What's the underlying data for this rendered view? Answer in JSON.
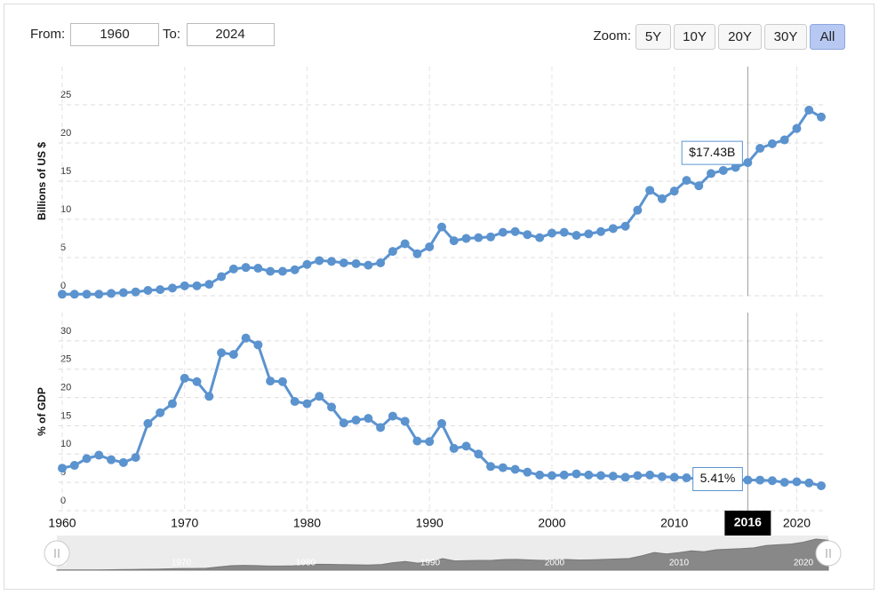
{
  "controls": {
    "from_label": "From:",
    "from": "1960",
    "to_label": "To:",
    "to": "2024",
    "zoom_label": "Zoom:",
    "zoom": [
      "5Y",
      "10Y",
      "20Y",
      "30Y",
      "All"
    ],
    "zoom_active": "All"
  },
  "chart_data": [
    {
      "type": "line",
      "y_label": "Billions of US $",
      "color": "#5b93cf",
      "x": [
        1960,
        1961,
        1962,
        1963,
        1964,
        1965,
        1966,
        1967,
        1968,
        1969,
        1970,
        1971,
        1972,
        1973,
        1974,
        1975,
        1976,
        1977,
        1978,
        1979,
        1980,
        1981,
        1982,
        1983,
        1984,
        1985,
        1986,
        1987,
        1988,
        1989,
        1990,
        1991,
        1992,
        1993,
        1994,
        1995,
        1996,
        1997,
        1998,
        1999,
        2000,
        2001,
        2002,
        2003,
        2004,
        2005,
        2006,
        2007,
        2008,
        2009,
        2010,
        2011,
        2012,
        2013,
        2014,
        2015,
        2016,
        2017,
        2018,
        2019,
        2020,
        2021,
        2022
      ],
      "values": [
        0.2,
        0.2,
        0.2,
        0.2,
        0.3,
        0.4,
        0.5,
        0.7,
        0.8,
        1.0,
        1.3,
        1.3,
        1.5,
        2.5,
        3.5,
        3.7,
        3.6,
        3.2,
        3.2,
        3.4,
        4.1,
        4.6,
        4.5,
        4.3,
        4.2,
        4.0,
        4.3,
        5.8,
        6.8,
        5.5,
        6.4,
        9.0,
        7.2,
        7.5,
        7.6,
        7.7,
        8.3,
        8.4,
        8.0,
        7.6,
        8.2,
        8.3,
        7.9,
        8.1,
        8.4,
        8.8,
        9.1,
        11.2,
        13.8,
        12.7,
        13.7,
        15.1,
        14.4,
        16.0,
        16.4,
        16.8,
        17.43,
        19.3,
        19.9,
        20.4,
        21.9,
        24.3,
        23.4
      ],
      "xlim": [
        1960,
        2022
      ],
      "xticks": [
        1960,
        1970,
        1980,
        1990,
        2000,
        2010,
        2020
      ],
      "ylim": [
        0,
        30
      ],
      "yticks": [
        0,
        5,
        10,
        15,
        20,
        25
      ],
      "grid": true,
      "tooltip": {
        "x": 2016,
        "label": "$17.43B"
      }
    },
    {
      "type": "line",
      "y_label": "% of GDP",
      "color": "#5b93cf",
      "x": [
        1960,
        1961,
        1962,
        1963,
        1964,
        1965,
        1966,
        1967,
        1968,
        1969,
        1970,
        1971,
        1972,
        1973,
        1974,
        1975,
        1976,
        1977,
        1978,
        1979,
        1980,
        1981,
        1982,
        1983,
        1984,
        1985,
        1986,
        1987,
        1988,
        1989,
        1990,
        1991,
        1992,
        1993,
        1994,
        1995,
        1996,
        1997,
        1998,
        1999,
        2000,
        2001,
        2002,
        2003,
        2004,
        2005,
        2006,
        2007,
        2008,
        2009,
        2010,
        2011,
        2012,
        2013,
        2014,
        2015,
        2016,
        2017,
        2018,
        2019,
        2020,
        2021,
        2022
      ],
      "values": [
        7.5,
        8.0,
        9.2,
        9.8,
        9.0,
        8.5,
        9.4,
        15.4,
        17.3,
        18.9,
        23.4,
        22.8,
        20.2,
        27.9,
        27.6,
        30.5,
        29.3,
        22.9,
        22.8,
        19.3,
        18.9,
        20.2,
        18.3,
        15.5,
        16.0,
        16.3,
        14.7,
        16.7,
        15.8,
        12.3,
        12.2,
        15.4,
        11.0,
        11.4,
        10.0,
        7.8,
        7.6,
        7.3,
        6.8,
        6.3,
        6.2,
        6.3,
        6.5,
        6.3,
        6.2,
        6.1,
        5.9,
        6.2,
        6.3,
        6.0,
        5.9,
        5.8,
        5.6,
        5.6,
        5.5,
        5.4,
        5.41,
        5.4,
        5.3,
        5.0,
        5.1,
        4.9,
        4.4
      ],
      "xlim": [
        1960,
        2022
      ],
      "xticks": [
        1960,
        1970,
        1980,
        1990,
        2000,
        2010,
        2020
      ],
      "ylim": [
        0,
        35
      ],
      "yticks": [
        0,
        5,
        10,
        15,
        20,
        25,
        30
      ],
      "grid": true,
      "tooltip": {
        "x": 2016,
        "label": "5.41%"
      }
    }
  ]
}
